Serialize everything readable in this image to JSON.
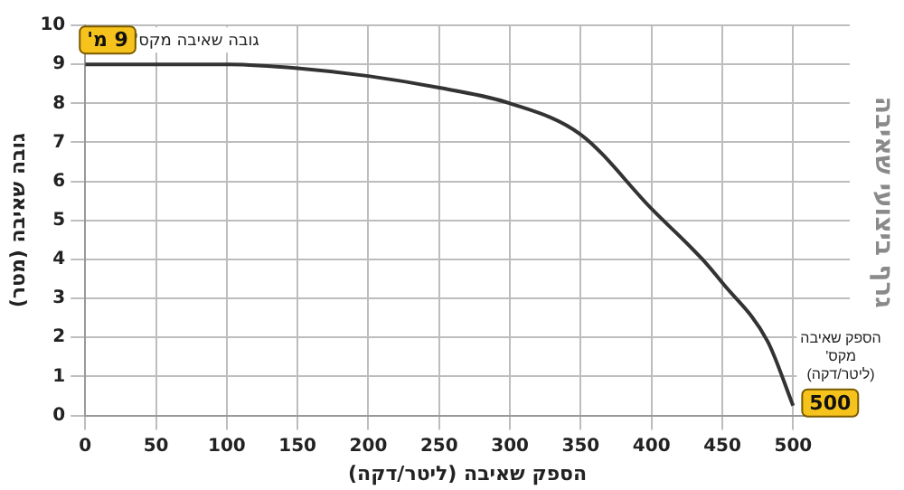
{
  "chart_data": {
    "type": "line",
    "title": "גרף ביצועי שאיבה",
    "xlabel": "הספק שאיבה (ליטר/דקה)",
    "ylabel": "גובה שאיבה (מטר)",
    "x": [
      0,
      50,
      100,
      150,
      200,
      250,
      300,
      350,
      400,
      436,
      450,
      482,
      500
    ],
    "series": [
      {
        "color": "#333333",
        "values": [
          9.0,
          9.0,
          9.0,
          8.9,
          8.7,
          8.4,
          8.0,
          7.2,
          5.3,
          4.0,
          3.4,
          1.9,
          0.25
        ]
      }
    ],
    "xlim": [
      0,
      540
    ],
    "xticks": [
      0,
      50,
      100,
      150,
      200,
      250,
      300,
      350,
      400,
      450,
      500
    ],
    "ylim": [
      0,
      10
    ],
    "yticks": [
      0,
      1,
      2,
      3,
      4,
      5,
      6,
      7,
      8,
      9,
      10
    ],
    "grid": true,
    "legend": false,
    "marker": "none",
    "line_style": "solid",
    "annotations": [
      "גובה שאיבה מקס'",
      {
        "text": "9 מ'",
        "x": 0,
        "y": 9
      },
      "הספק שאיבה מקס' (ליטר/דקה)",
      {
        "text": "500",
        "x": 500,
        "y": 0.25
      }
    ]
  }
}
